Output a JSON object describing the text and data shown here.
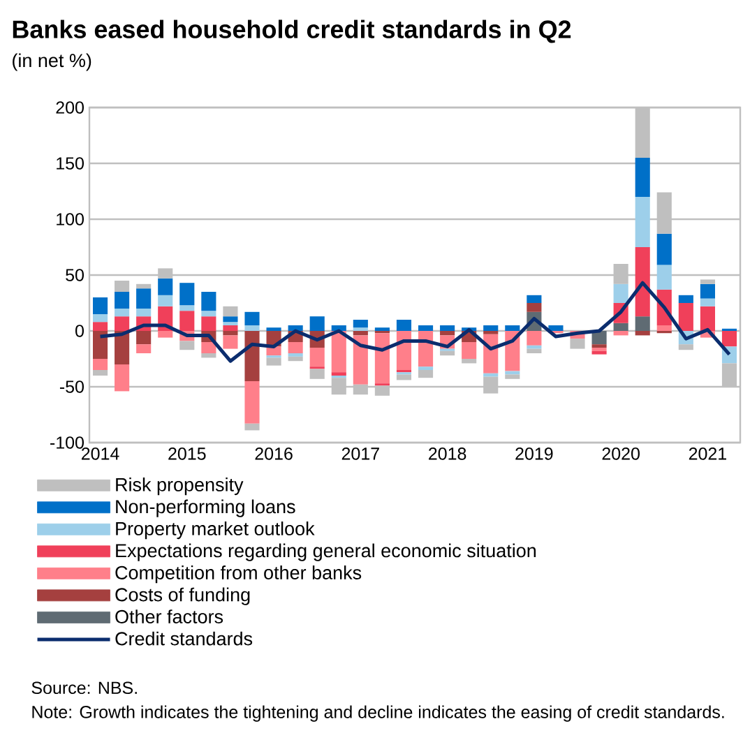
{
  "chart_data": {
    "type": "bar",
    "stacked": true,
    "title": "Banks eased household credit standards in Q2",
    "subtitle": "(in net %)",
    "categories": [
      "2014",
      null,
      null,
      null,
      "2015",
      null,
      null,
      null,
      "2016",
      null,
      null,
      null,
      "2017",
      null,
      null,
      null,
      "2018",
      null,
      null,
      null,
      "2019",
      null,
      null,
      null,
      "2020",
      null,
      null,
      null,
      "2021",
      null
    ],
    "ylim": [
      -100,
      200
    ],
    "yticks": [
      -100,
      -50,
      0,
      50,
      100,
      150,
      200
    ],
    "grid": "y",
    "legend": "bottom",
    "series": [
      {
        "name": "Other factors",
        "color": "#5f6b73",
        "values": [
          null,
          null,
          null,
          null,
          null,
          null,
          null,
          null,
          null,
          null,
          null,
          null,
          null,
          null,
          null,
          null,
          null,
          null,
          null,
          null,
          17,
          null,
          null,
          -12,
          7,
          13,
          null,
          null,
          null,
          null
        ]
      },
      {
        "name": "Costs of funding",
        "color": "#a5403f",
        "values": [
          -25,
          -30,
          -12,
          null,
          null,
          -10,
          -4,
          -45,
          -14,
          -10,
          -15,
          null,
          -4,
          -2,
          null,
          null,
          -4,
          -10,
          -3,
          null,
          8,
          null,
          null,
          -3,
          null,
          -4,
          -2,
          null,
          null,
          null
        ]
      },
      {
        "name": "Competition from other banks",
        "color": "#ff7f8a",
        "values": [
          -10,
          -24,
          -8,
          -6,
          -9,
          -10,
          -12,
          -38,
          -8,
          -10,
          -17,
          -37,
          -44,
          -45,
          -35,
          -32,
          -12,
          -15,
          -35,
          -36,
          -13,
          -2,
          -7,
          -3,
          -4,
          null,
          5,
          null,
          -6,
          null
        ]
      },
      {
        "name": "Expectations regarding general economic situation",
        "color": "#f0405a",
        "values": [
          8,
          13,
          13,
          22,
          18,
          13,
          5,
          null,
          null,
          null,
          -2,
          -3,
          null,
          -2,
          -2,
          null,
          null,
          null,
          null,
          null,
          null,
          null,
          null,
          -3,
          18,
          62,
          32,
          25,
          22,
          -14
        ]
      },
      {
        "name": "Property market outlook",
        "color": "#9dcfea",
        "values": [
          7,
          7,
          7,
          10,
          5,
          5,
          3,
          5,
          -2,
          -3,
          null,
          -2,
          3,
          null,
          -2,
          -3,
          -2,
          null,
          -3,
          -3,
          -3,
          null,
          null,
          null,
          17,
          45,
          22,
          -12,
          7,
          -15
        ]
      },
      {
        "name": "Non-performing loans",
        "color": "#0070c8",
        "values": [
          15,
          15,
          18,
          15,
          20,
          17,
          5,
          12,
          3,
          5,
          13,
          5,
          7,
          3,
          10,
          5,
          5,
          3,
          5,
          5,
          7,
          5,
          null,
          null,
          null,
          35,
          28,
          7,
          13,
          2
        ]
      },
      {
        "name": "Risk propensity",
        "color": "#bfbfbf",
        "values": [
          -5,
          10,
          4,
          9,
          -8,
          -4,
          9,
          -6,
          -7,
          -4,
          -9,
          -15,
          -9,
          -9,
          -5,
          -7,
          -4,
          -4,
          -15,
          -4,
          -4,
          null,
          -9,
          null,
          18,
          45,
          37,
          -5,
          4,
          -21
        ]
      },
      {
        "name": "Credit standards",
        "type": "line",
        "color": "#0b2d6e",
        "marker": "none",
        "line_style": "solid",
        "values": [
          -5,
          -3,
          5,
          5,
          -4,
          -4,
          -27,
          -12,
          -14,
          0,
          -8,
          0,
          -13,
          -17,
          -9,
          -9,
          -14,
          1,
          -16,
          -9,
          11,
          -5,
          -2,
          0,
          17,
          43,
          21,
          -7,
          1,
          -21
        ]
      }
    ],
    "annotations": [
      "Source: NBS.",
      "Note: Growth indicates the tightening and decline indicates the easing of credit standards."
    ]
  }
}
